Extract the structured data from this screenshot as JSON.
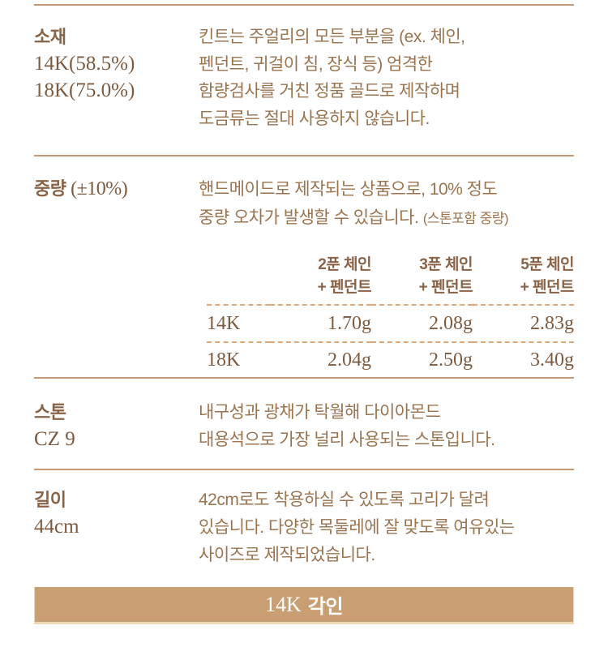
{
  "colors": {
    "body_text": "#9a734f",
    "bold_text": "#8a6347",
    "serif_text": "#7d5b40",
    "divider": "#c49973",
    "dashed_line": "#dba97b",
    "banner_bg": "#c99e72",
    "banner_edge": "#ecd9b8",
    "banner_text": "#ffffff"
  },
  "sections": {
    "material": {
      "title": "소재",
      "sub_lines": [
        "14K(58.5%)",
        "18K(75.0%)"
      ],
      "body_lines": [
        "킨트는 주얼리의 모든 부분을 (ex. 체인,",
        "펜던트, 귀걸이 침, 장식 등) 엄격한",
        "함량검사를 거친 정품 골드로 제작하며",
        "도금류는 절대 사용하지 않습니다."
      ]
    },
    "weight": {
      "title": "중량",
      "title_suffix": "(±10%)",
      "body_line1": "핸드메이드로 제작되는 상품으로, 10% 정도",
      "body_line2": "중량 오차가 발생할 수 있습니다.",
      "body_note": "(스톤포함 중량)"
    },
    "stone": {
      "title": "스톤",
      "sub": "CZ 9",
      "body_lines": [
        "내구성과 광채가 탁월해 다이아몬드",
        "대용석으로 가장 널리 사용되는 스톤입니다."
      ]
    },
    "length": {
      "title": "길이",
      "sub": "44cm",
      "body_lines": [
        "42cm로도 착용하실 수 있도록 고리가 달려",
        "있습니다. 다양한 목둘레에 잘 맞도록 여유있는",
        "사이즈로 제작되었습니다."
      ]
    }
  },
  "weight_table": {
    "headers": [
      {
        "line1": "2푼 체인",
        "line2": "+ 펜던트"
      },
      {
        "line1": "3푼 체인",
        "line2": "+ 펜던트"
      },
      {
        "line1": "5푼 체인",
        "line2": "+ 펜던트"
      }
    ],
    "rows": [
      {
        "label": "14K",
        "values": [
          "1.70g",
          "2.08g",
          "2.83g"
        ]
      },
      {
        "label": "18K",
        "values": [
          "2.04g",
          "2.50g",
          "3.40g"
        ]
      }
    ]
  },
  "banner": {
    "karat": "14K",
    "label": "각인"
  }
}
